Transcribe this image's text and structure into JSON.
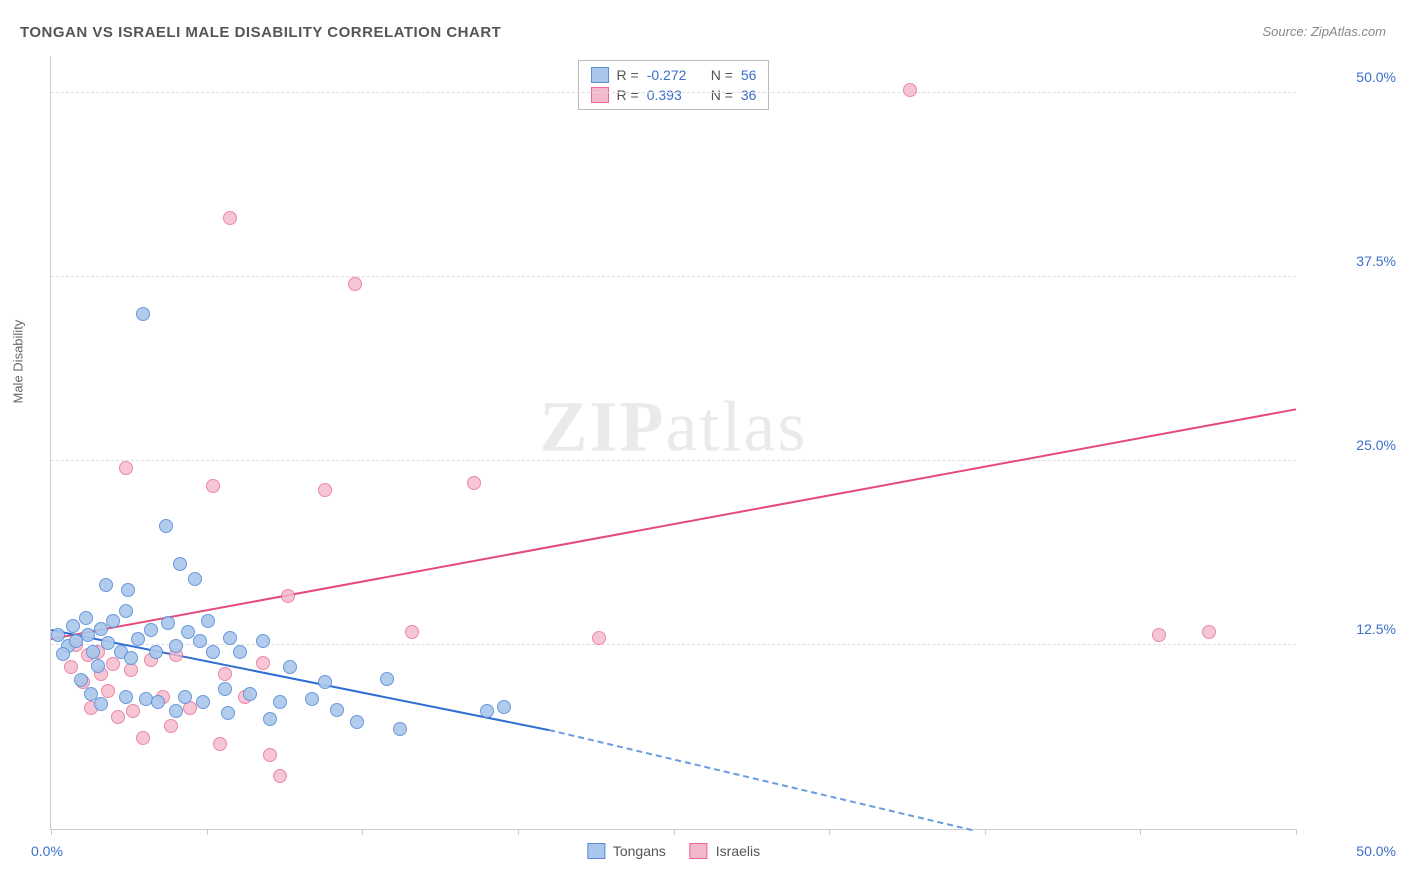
{
  "chart": {
    "title": "TONGAN VS ISRAELI MALE DISABILITY CORRELATION CHART",
    "source": "Source: ZipAtlas.com",
    "ylabel": "Male Disability",
    "watermark_a": "ZIP",
    "watermark_b": "atlas",
    "type": "scatter",
    "xlim": [
      0,
      50
    ],
    "ylim": [
      0,
      52.5
    ],
    "x_axis_label_left": "0.0%",
    "x_axis_label_right": "50.0%",
    "y_ticks": [
      {
        "pos": 12.5,
        "label": "12.5%"
      },
      {
        "pos": 25.0,
        "label": "25.0%"
      },
      {
        "pos": 37.5,
        "label": "37.5%"
      },
      {
        "pos": 50.0,
        "label": "50.0%"
      }
    ],
    "x_tick_positions": [
      0,
      6.25,
      12.5,
      18.75,
      25,
      31.25,
      37.5,
      43.75,
      50
    ],
    "background_color": "#ffffff",
    "grid_color": "#dddddd",
    "axis_color": "#cccccc",
    "tick_label_color": "#3b6fc9",
    "title_color": "#555555",
    "label_fontsize": 13,
    "title_fontsize": 15,
    "series": {
      "tongans": {
        "label": "Tongans",
        "marker_fill": "#a9c7ea",
        "marker_stroke": "#5a8fd8",
        "marker_fill_opacity": 0.55,
        "line_color": "#2e6fd1",
        "dashed_color": "#6a9cde",
        "R": "-0.272",
        "N": "56",
        "trend": {
          "x1": 0,
          "y1": 13.6,
          "x2": 20,
          "y2": 6.8,
          "x2_dash": 37,
          "y2_dash": 0
        },
        "points": [
          {
            "x": 0.3,
            "y": 13.2
          },
          {
            "x": 0.7,
            "y": 12.4
          },
          {
            "x": 0.9,
            "y": 13.8
          },
          {
            "x": 0.5,
            "y": 11.9
          },
          {
            "x": 1.0,
            "y": 12.8
          },
          {
            "x": 1.2,
            "y": 10.1
          },
          {
            "x": 1.5,
            "y": 13.2
          },
          {
            "x": 1.4,
            "y": 14.3
          },
          {
            "x": 1.6,
            "y": 9.2
          },
          {
            "x": 1.7,
            "y": 12.0
          },
          {
            "x": 2.0,
            "y": 13.6
          },
          {
            "x": 1.9,
            "y": 11.1
          },
          {
            "x": 2.2,
            "y": 16.6
          },
          {
            "x": 2.3,
            "y": 12.6
          },
          {
            "x": 2.5,
            "y": 14.1
          },
          {
            "x": 2.0,
            "y": 8.5
          },
          {
            "x": 2.8,
            "y": 12.0
          },
          {
            "x": 3.0,
            "y": 14.8
          },
          {
            "x": 3.1,
            "y": 16.2
          },
          {
            "x": 3.0,
            "y": 9.0
          },
          {
            "x": 3.2,
            "y": 11.6
          },
          {
            "x": 3.5,
            "y": 12.9
          },
          {
            "x": 3.8,
            "y": 8.8
          },
          {
            "x": 3.7,
            "y": 35.0
          },
          {
            "x": 4.0,
            "y": 13.5
          },
          {
            "x": 4.2,
            "y": 12.0
          },
          {
            "x": 4.3,
            "y": 8.6
          },
          {
            "x": 4.6,
            "y": 20.6
          },
          {
            "x": 4.7,
            "y": 14.0
          },
          {
            "x": 5.0,
            "y": 12.4
          },
          {
            "x": 5.2,
            "y": 18.0
          },
          {
            "x": 5.0,
            "y": 8.0
          },
          {
            "x": 5.5,
            "y": 13.4
          },
          {
            "x": 5.4,
            "y": 9.0
          },
          {
            "x": 5.8,
            "y": 17.0
          },
          {
            "x": 6.0,
            "y": 12.8
          },
          {
            "x": 6.3,
            "y": 14.1
          },
          {
            "x": 6.1,
            "y": 8.6
          },
          {
            "x": 6.5,
            "y": 12.0
          },
          {
            "x": 7.0,
            "y": 9.5
          },
          {
            "x": 7.2,
            "y": 13.0
          },
          {
            "x": 7.1,
            "y": 7.9
          },
          {
            "x": 7.6,
            "y": 12.0
          },
          {
            "x": 8.0,
            "y": 9.2
          },
          {
            "x": 8.5,
            "y": 12.8
          },
          {
            "x": 8.8,
            "y": 7.5
          },
          {
            "x": 9.2,
            "y": 8.6
          },
          {
            "x": 9.6,
            "y": 11.0
          },
          {
            "x": 10.5,
            "y": 8.8
          },
          {
            "x": 11.0,
            "y": 10.0
          },
          {
            "x": 11.5,
            "y": 8.1
          },
          {
            "x": 12.3,
            "y": 7.3
          },
          {
            "x": 13.5,
            "y": 10.2
          },
          {
            "x": 14.0,
            "y": 6.8
          },
          {
            "x": 17.5,
            "y": 8.0
          },
          {
            "x": 18.2,
            "y": 8.3
          }
        ]
      },
      "israelis": {
        "label": "Israelis",
        "marker_fill": "#f4b8cb",
        "marker_stroke": "#e86a92",
        "marker_fill_opacity": 0.45,
        "line_color": "#e54b7a",
        "R": "0.393",
        "N": "36",
        "trend": {
          "x1": 0,
          "y1": 13.0,
          "x2": 50,
          "y2": 28.6
        },
        "points": [
          {
            "x": 0.8,
            "y": 11.0
          },
          {
            "x": 1.0,
            "y": 12.5
          },
          {
            "x": 1.3,
            "y": 10.0
          },
          {
            "x": 1.5,
            "y": 11.8
          },
          {
            "x": 1.6,
            "y": 8.2
          },
          {
            "x": 1.9,
            "y": 12.0
          },
          {
            "x": 2.0,
            "y": 10.5
          },
          {
            "x": 2.3,
            "y": 9.4
          },
          {
            "x": 2.5,
            "y": 11.2
          },
          {
            "x": 2.7,
            "y": 7.6
          },
          {
            "x": 3.0,
            "y": 24.5
          },
          {
            "x": 3.2,
            "y": 10.8
          },
          {
            "x": 3.3,
            "y": 8.0
          },
          {
            "x": 3.7,
            "y": 6.2
          },
          {
            "x": 4.0,
            "y": 11.5
          },
          {
            "x": 4.5,
            "y": 9.0
          },
          {
            "x": 4.8,
            "y": 7.0
          },
          {
            "x": 5.0,
            "y": 11.8
          },
          {
            "x": 5.6,
            "y": 8.2
          },
          {
            "x": 6.5,
            "y": 23.3
          },
          {
            "x": 6.8,
            "y": 5.8
          },
          {
            "x": 7.0,
            "y": 10.5
          },
          {
            "x": 7.2,
            "y": 41.5
          },
          {
            "x": 7.8,
            "y": 9.0
          },
          {
            "x": 8.5,
            "y": 11.3
          },
          {
            "x": 8.8,
            "y": 5.0
          },
          {
            "x": 9.2,
            "y": 3.6
          },
          {
            "x": 9.5,
            "y": 15.8
          },
          {
            "x": 11.0,
            "y": 23.0
          },
          {
            "x": 12.2,
            "y": 37.0
          },
          {
            "x": 14.5,
            "y": 13.4
          },
          {
            "x": 17.0,
            "y": 23.5
          },
          {
            "x": 22.0,
            "y": 13.0
          },
          {
            "x": 34.5,
            "y": 50.2
          },
          {
            "x": 44.5,
            "y": 13.2
          },
          {
            "x": 46.5,
            "y": 13.4
          }
        ]
      }
    },
    "legend_top": {
      "R_label": "R =",
      "N_label": "N ="
    }
  }
}
